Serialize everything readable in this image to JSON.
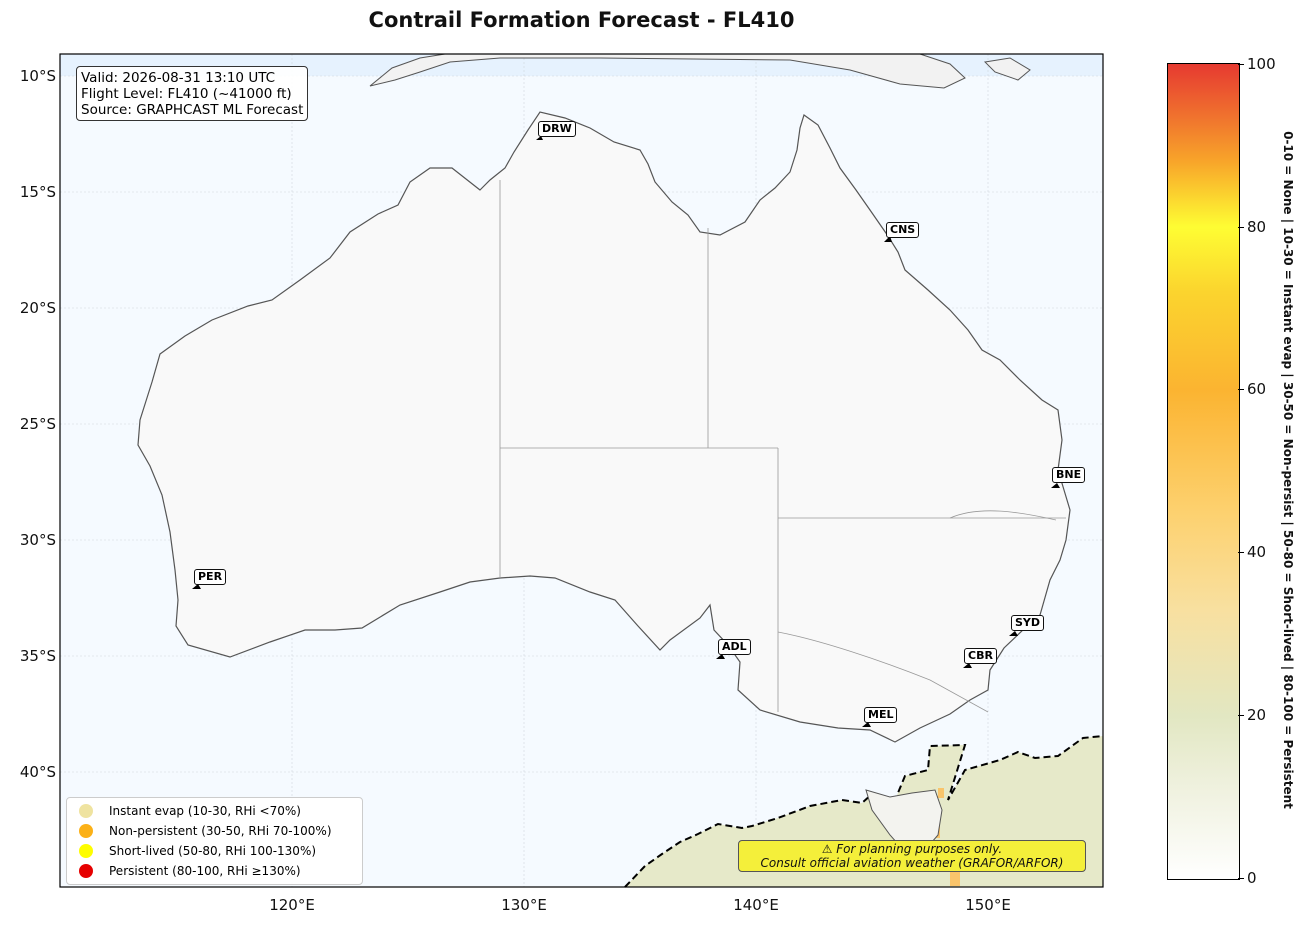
{
  "title": "Contrail Formation Forecast - FL410",
  "info": {
    "valid": "Valid: 2026-08-31 13:10 UTC",
    "flight_level": "Flight Level: FL410 (~41000 ft)",
    "source": "Source: GRAPHCAST ML Forecast"
  },
  "lat_labels": [
    "10°S",
    "15°S",
    "20°S",
    "25°S",
    "30°S",
    "35°S",
    "40°S"
  ],
  "lon_labels": [
    "120°E",
    "130°E",
    "140°E",
    "150°E"
  ],
  "cities": [
    {
      "code": "DRW",
      "lon": 130.8,
      "lat": -12.5
    },
    {
      "code": "CNS",
      "lon": 145.7,
      "lat": -16.9
    },
    {
      "code": "BNE",
      "lon": 153.0,
      "lat": -27.5
    },
    {
      "code": "PER",
      "lon": 115.9,
      "lat": -31.9
    },
    {
      "code": "ADL",
      "lon": 138.6,
      "lat": -34.9
    },
    {
      "code": "SYD",
      "lon": 151.2,
      "lat": -33.9
    },
    {
      "code": "CBR",
      "lon": 149.1,
      "lat": -35.3
    },
    {
      "code": "MEL",
      "lon": 144.9,
      "lat": -37.8
    }
  ],
  "legend": [
    {
      "label": "Instant evap (10-30, RHi <70%)",
      "color": "#efe3a0"
    },
    {
      "label": "Non-persistent (30-50, RHi 70-100%)",
      "color": "#fbb117"
    },
    {
      "label": "Short-lived (50-80, RHi 100-130%)",
      "color": "#fefd00"
    },
    {
      "label": "Persistent (80-100, RHi ≥130%)",
      "color": "#e60000"
    }
  ],
  "warning": {
    "line1": "⚠ For planning purposes only.",
    "line2": "Consult official aviation weather (GRAFOR/ARFOR)"
  },
  "colorbar": {
    "ticks": [
      "0",
      "20",
      "40",
      "60",
      "80",
      "100"
    ],
    "label": "0-10 = None  |  10-30 = Instant evap  |  30-50 = Non-persist  |  50-80 = Short-lived  |  80-100 = Persistent"
  },
  "colors": {
    "ocean": "#f5faff",
    "land": "#f9f9f9",
    "coast": "#555555",
    "instant_evap_field": "#e8ebcc",
    "non_persistent_cells": "#f9c46b"
  }
}
